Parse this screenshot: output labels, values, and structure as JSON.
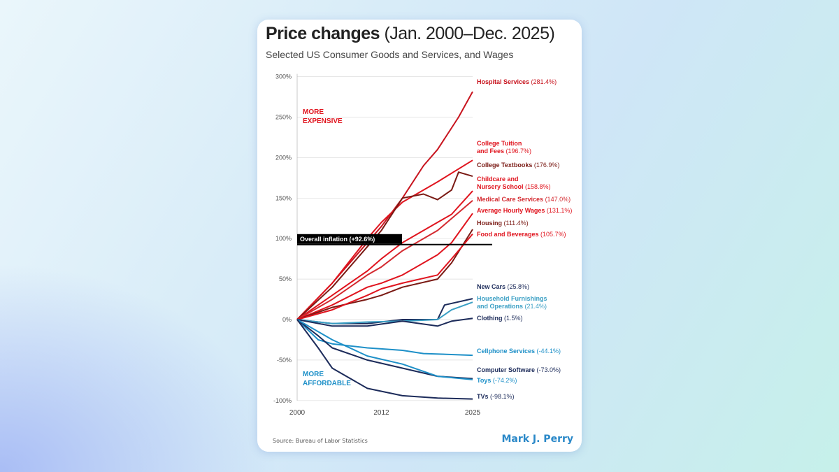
{
  "header": {
    "title_bold": "Price changes",
    "title_rest": "(Jan. 2000–Dec. 2025)",
    "subtitle": "Selected US Consumer Goods and Services, and Wages"
  },
  "footer": {
    "source": "Source:  Bureau of Labor Statistics",
    "brand": "Mark J. Perry"
  },
  "chart_data": {
    "type": "line",
    "title": "Price changes (Jan. 2000–Dec. 2025)",
    "xlim": [
      2000,
      2025
    ],
    "ylim": [
      -100,
      300
    ],
    "x_ticks": [
      "2000",
      "2012",
      "2025"
    ],
    "y_ticks": [
      "300%",
      "250%",
      "200%",
      "150%",
      "100%",
      "50%",
      "0%",
      "-50%",
      "-100%"
    ],
    "grid": true,
    "annotations": [
      {
        "text": "MORE\nEXPENSIVE",
        "color": "#e0141e"
      },
      {
        "text": "MORE\nAFFORDABLE",
        "color": "#1e90c8"
      }
    ],
    "reference_line": {
      "label": "Overall inflation (+92.6%)",
      "value": 92.6,
      "color": "#000000"
    },
    "series": [
      {
        "name": "Hospital Services",
        "final": "(281.4%)",
        "color": "#c8141e",
        "x": [
          2000,
          2005,
          2010,
          2012,
          2015,
          2018,
          2020,
          2023,
          2025
        ],
        "y": [
          0,
          45,
          95,
          115,
          150,
          190,
          210,
          250,
          281.4
        ]
      },
      {
        "name": "College Tuition and Fees",
        "final": "(196.7%)",
        "color": "#e0141e",
        "x": [
          2000,
          2005,
          2010,
          2012,
          2015,
          2020,
          2025
        ],
        "y": [
          0,
          45,
          100,
          120,
          145,
          170,
          196.7
        ]
      },
      {
        "name": "College Textbooks",
        "final": "(176.9%)",
        "color": "#7a1a14",
        "x": [
          2000,
          2005,
          2010,
          2012,
          2015,
          2018,
          2020,
          2022,
          2023,
          2025
        ],
        "y": [
          0,
          40,
          90,
          110,
          150,
          155,
          148,
          160,
          182,
          176.9
        ]
      },
      {
        "name": "Childcare and Nursery School",
        "final": "(158.8%)",
        "color": "#e0141e",
        "x": [
          2000,
          2005,
          2010,
          2012,
          2015,
          2020,
          2022,
          2025
        ],
        "y": [
          0,
          30,
          60,
          75,
          95,
          120,
          130,
          158.8
        ]
      },
      {
        "name": "Medical Care Services",
        "final": "(147.0%)",
        "color": "#d42a30",
        "x": [
          2000,
          2005,
          2010,
          2012,
          2015,
          2020,
          2025
        ],
        "y": [
          0,
          25,
          55,
          65,
          85,
          110,
          147
        ]
      },
      {
        "name": "Average Hourly Wages",
        "final": "(131.1%)",
        "color": "#e0141e",
        "x": [
          2000,
          2005,
          2010,
          2012,
          2015,
          2020,
          2022,
          2025
        ],
        "y": [
          0,
          18,
          40,
          45,
          55,
          80,
          95,
          131.1
        ]
      },
      {
        "name": "Housing",
        "final": "(111.4%)",
        "color": "#7a1a14",
        "x": [
          2000,
          2005,
          2010,
          2012,
          2015,
          2020,
          2022,
          2025
        ],
        "y": [
          0,
          15,
          25,
          30,
          40,
          50,
          70,
          111.4
        ]
      },
      {
        "name": "Food and Beverages",
        "final": "(105.7%)",
        "color": "#e0141e",
        "x": [
          2000,
          2005,
          2010,
          2012,
          2015,
          2020,
          2022,
          2025
        ],
        "y": [
          0,
          12,
          30,
          38,
          45,
          55,
          75,
          105.7
        ]
      },
      {
        "name": "New Cars",
        "final": "(25.8%)",
        "color": "#1c2b5a",
        "x": [
          2000,
          2005,
          2010,
          2015,
          2020,
          2021,
          2025
        ],
        "y": [
          0,
          -5,
          -5,
          0,
          0,
          18,
          25.8
        ]
      },
      {
        "name": "Household Furnishings and Operations",
        "final": "(21.4%)",
        "color": "#3a9fc4",
        "x": [
          2000,
          2005,
          2010,
          2015,
          2020,
          2022,
          2025
        ],
        "y": [
          0,
          -5,
          -3,
          -2,
          0,
          12,
          21.4
        ]
      },
      {
        "name": "Clothing",
        "final": "(1.5%)",
        "color": "#1c2b5a",
        "x": [
          2000,
          2005,
          2010,
          2015,
          2020,
          2022,
          2025
        ],
        "y": [
          0,
          -8,
          -8,
          -2,
          -8,
          -2,
          1.5
        ]
      },
      {
        "name": "Cellphone Services",
        "final": "(-44.1%)",
        "color": "#1e90c8",
        "x": [
          2000,
          2003,
          2005,
          2010,
          2015,
          2018,
          2025
        ],
        "y": [
          0,
          -25,
          -30,
          -35,
          -38,
          -42,
          -44.1
        ]
      },
      {
        "name": "Computer Software",
        "final": "(-73.0%)",
        "color": "#1c2b5a",
        "x": [
          2000,
          2003,
          2005,
          2010,
          2015,
          2020,
          2025
        ],
        "y": [
          0,
          -20,
          -35,
          -50,
          -60,
          -70,
          -73
        ]
      },
      {
        "name": "Toys",
        "final": "(-74.2%)",
        "color": "#1e90c8",
        "x": [
          2000,
          2005,
          2010,
          2015,
          2020,
          2025
        ],
        "y": [
          0,
          -25,
          -45,
          -55,
          -70,
          -74.2
        ]
      },
      {
        "name": "TVs",
        "final": "(-98.1%)",
        "color": "#1c2b5a",
        "x": [
          2000,
          2003,
          2005,
          2010,
          2015,
          2020,
          2025
        ],
        "y": [
          0,
          -35,
          -60,
          -85,
          -94,
          -97,
          -98.1
        ]
      }
    ]
  }
}
